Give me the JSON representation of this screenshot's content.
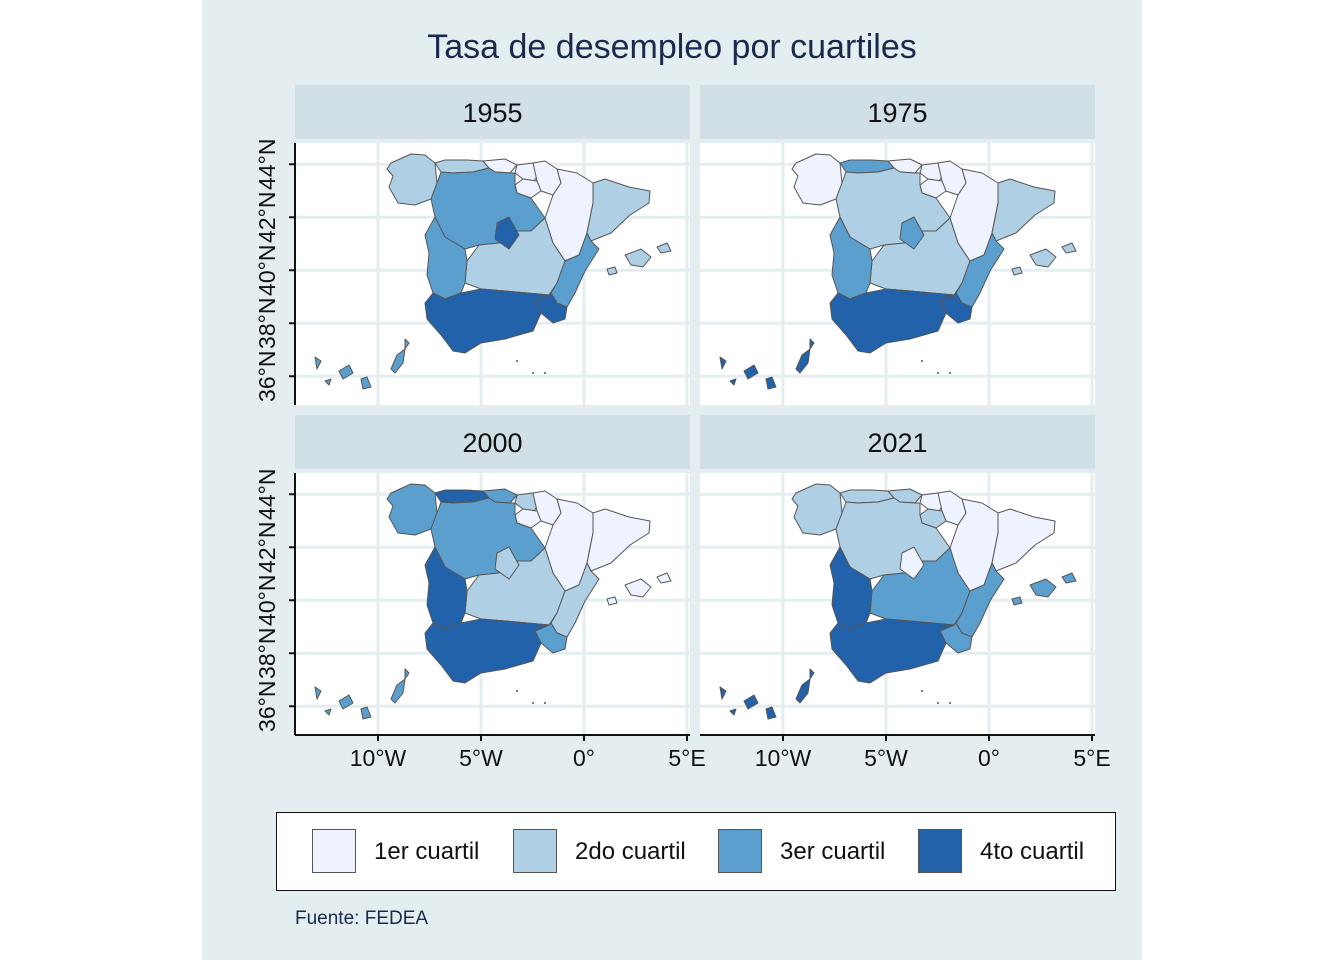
{
  "title": "Tasa de desempleo por cuartiles",
  "source": "Fuente: FEDEA",
  "legend": [
    {
      "label": "1er cuartil",
      "color": "#eff3ff"
    },
    {
      "label": "2do cuartil",
      "color": "#afcfe5"
    },
    {
      "label": "3er cuartil",
      "color": "#5b9fcf"
    },
    {
      "label": "4to cuartil",
      "color": "#2262ab"
    }
  ],
  "x_ticks": [
    "10°W",
    "5°W",
    "0°",
    "5°E"
  ],
  "y_ticks": [
    "36°N",
    "38°N",
    "40°N",
    "42°N",
    "44°N"
  ],
  "panels": [
    {
      "year": "1955",
      "quartiles": {
        "galicia": 2,
        "asturias": 2,
        "cantabria": 1,
        "pais_vasco": 1,
        "navarra": 1,
        "rioja": 1,
        "aragon": 1,
        "cataluna": 2,
        "castilla_leon": 3,
        "madrid": 4,
        "castilla_mancha": 2,
        "valencia": 3,
        "murcia": 4,
        "extremadura": 3,
        "andalucia": 4,
        "baleares": 2,
        "canarias": 3
      }
    },
    {
      "year": "1975",
      "quartiles": {
        "galicia": 1,
        "asturias": 3,
        "cantabria": 1,
        "pais_vasco": 1,
        "navarra": 1,
        "rioja": 1,
        "aragon": 1,
        "cataluna": 2,
        "castilla_leon": 2,
        "madrid": 3,
        "castilla_mancha": 2,
        "valencia": 3,
        "murcia": 4,
        "extremadura": 3,
        "andalucia": 4,
        "baleares": 2,
        "canarias": 4
      }
    },
    {
      "year": "2000",
      "quartiles": {
        "galicia": 3,
        "asturias": 4,
        "cantabria": 3,
        "pais_vasco": 2,
        "navarra": 1,
        "rioja": 1,
        "aragon": 1,
        "cataluna": 1,
        "castilla_leon": 3,
        "madrid": 2,
        "castilla_mancha": 2,
        "valencia": 2,
        "murcia": 3,
        "extremadura": 4,
        "andalucia": 4,
        "baleares": 1,
        "canarias": 3
      }
    },
    {
      "year": "2021",
      "quartiles": {
        "galicia": 2,
        "asturias": 2,
        "cantabria": 2,
        "pais_vasco": 1,
        "navarra": 1,
        "rioja": 2,
        "aragon": 1,
        "cataluna": 1,
        "castilla_leon": 2,
        "madrid": 1,
        "castilla_mancha": 3,
        "valencia": 3,
        "murcia": 3,
        "extremadura": 4,
        "andalucia": 4,
        "baleares": 3,
        "canarias": 4
      }
    }
  ]
}
